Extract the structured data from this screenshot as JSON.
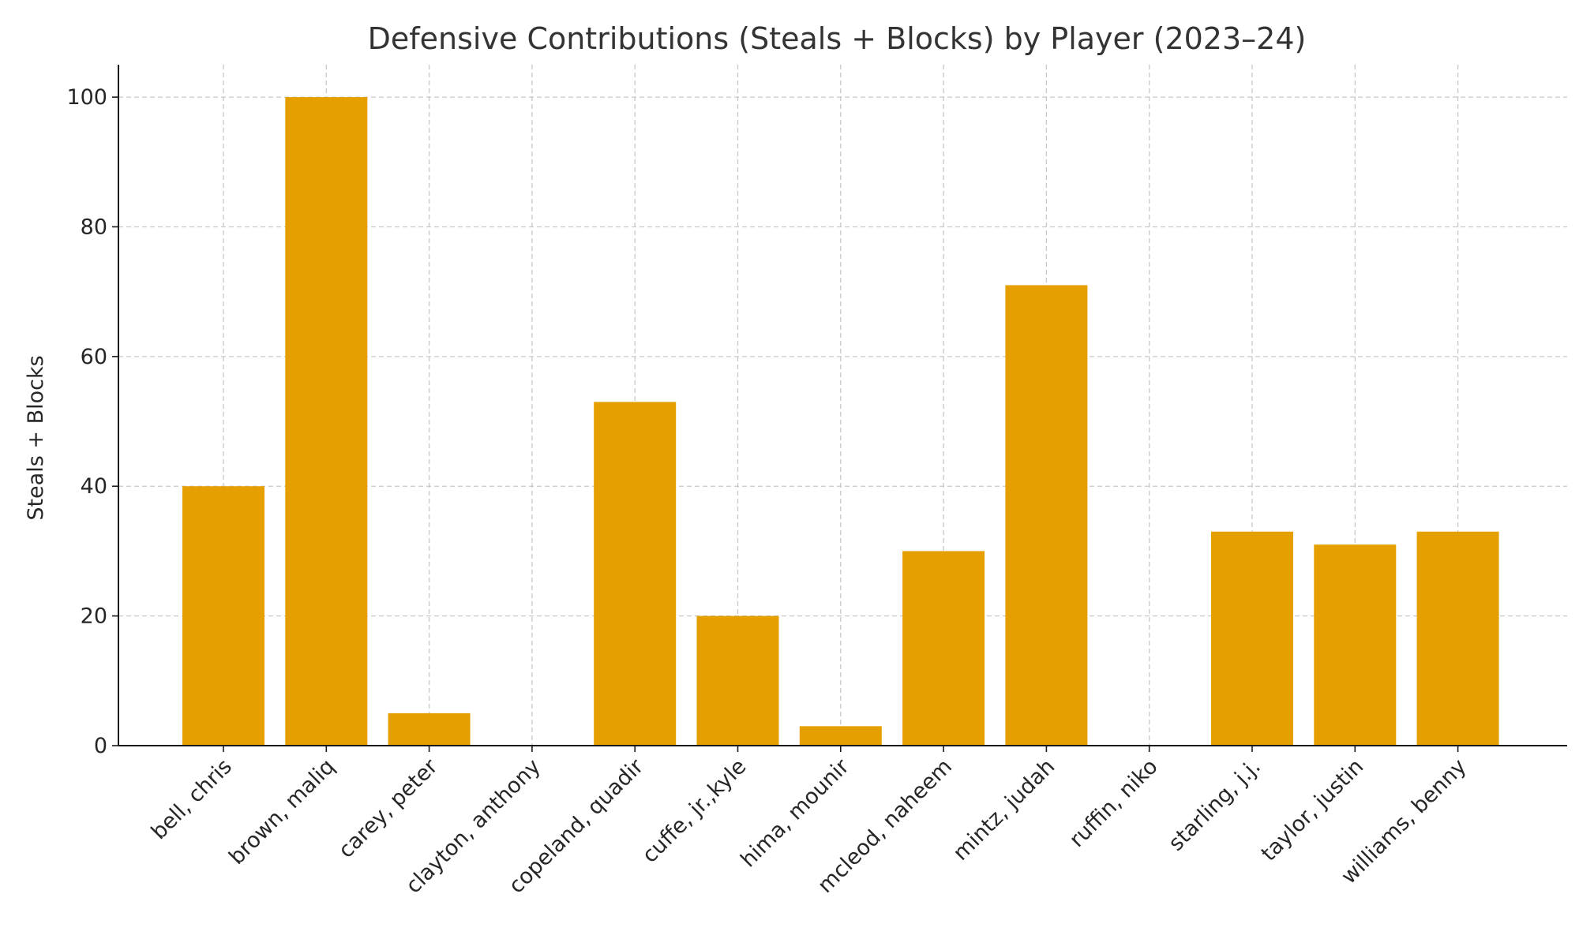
{
  "chart_data": {
    "type": "bar",
    "title": "Defensive Contributions (Steals + Blocks) by Player (2023–24)",
    "xlabel": "",
    "ylabel": "Steals + Blocks",
    "categories": [
      "bell, chris",
      "brown, maliq",
      "carey, peter",
      "clayton, anthony",
      "copeland, quadir",
      "cuffe, jr.,kyle",
      "hima, mounir",
      "mcleod, naheem",
      "mintz, judah",
      "ruffin, niko",
      "starling, j.j.",
      "taylor, justin",
      "williams, benny"
    ],
    "values": [
      40,
      100,
      5,
      0,
      53,
      20,
      3,
      30,
      71,
      0,
      33,
      31,
      33
    ],
    "ylim": [
      0,
      105
    ],
    "yticks": [
      0,
      20,
      40,
      60,
      80,
      100
    ],
    "grid": true,
    "bar_color": "#E69F00"
  }
}
